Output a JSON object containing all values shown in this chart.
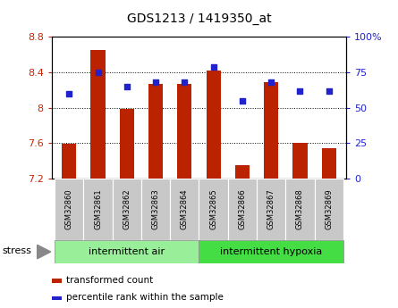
{
  "title": "GDS1213 / 1419350_at",
  "samples": [
    "GSM32860",
    "GSM32861",
    "GSM32862",
    "GSM32863",
    "GSM32864",
    "GSM32865",
    "GSM32866",
    "GSM32867",
    "GSM32868",
    "GSM32869"
  ],
  "transformed_count": [
    7.59,
    8.65,
    7.99,
    8.27,
    8.27,
    8.42,
    7.35,
    8.29,
    7.6,
    7.54
  ],
  "percentile_rank": [
    60,
    75,
    65,
    68,
    68,
    79,
    55,
    68,
    62,
    62
  ],
  "ylim_left": [
    7.2,
    8.8
  ],
  "ylim_right": [
    0,
    100
  ],
  "yticks_left": [
    7.2,
    7.6,
    8.0,
    8.4,
    8.8
  ],
  "ytick_labels_left": [
    "7.2",
    "7.6",
    "8",
    "8.4",
    "8.8"
  ],
  "yticks_right": [
    0,
    25,
    50,
    75,
    100
  ],
  "ytick_labels_right": [
    "0",
    "25",
    "50",
    "75",
    "100%"
  ],
  "bar_color": "#bb2200",
  "dot_color": "#2222cc",
  "bar_bottom": 7.2,
  "group1_label": "intermittent air",
  "group2_label": "intermittent hypoxia",
  "group1_indices": [
    0,
    1,
    2,
    3,
    4
  ],
  "group2_indices": [
    5,
    6,
    7,
    8,
    9
  ],
  "stress_label": "stress",
  "legend_bar_label": "transformed count",
  "legend_dot_label": "percentile rank within the sample",
  "group_bg_color": "#99ee99",
  "group2_bg_color": "#44dd44",
  "sample_bg_color": "#c8c8c8",
  "axis_label_color_left": "#cc2200",
  "axis_label_color_right": "#2222cc",
  "bar_width": 0.5
}
